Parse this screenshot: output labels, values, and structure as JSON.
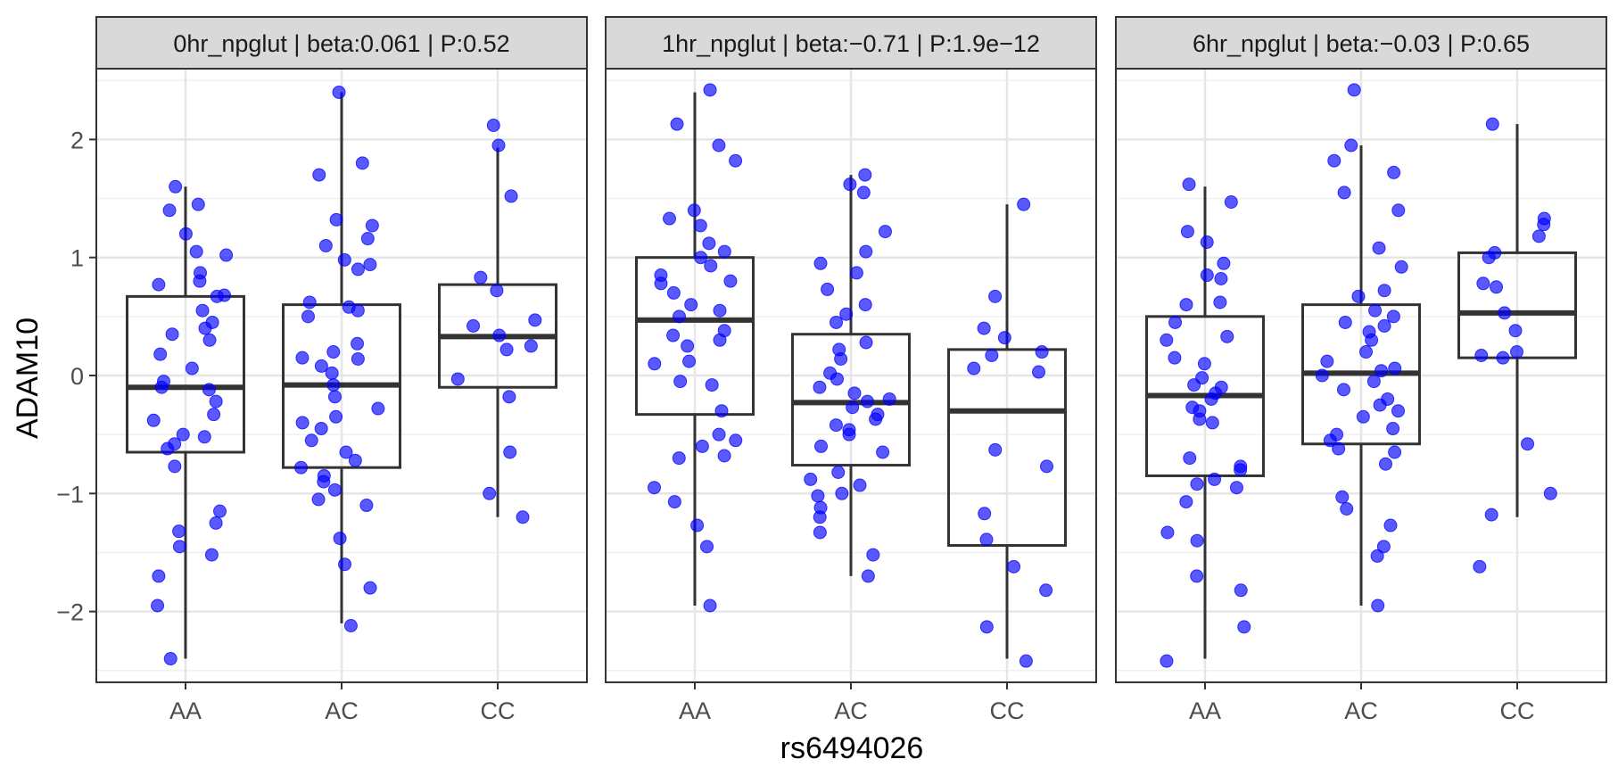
{
  "chart_data": {
    "type": "box",
    "xlabel": "rs6494026",
    "ylabel": "ADAM10",
    "ylim": [
      -2.6,
      2.6
    ],
    "y_ticks": [
      -2,
      -1,
      0,
      1,
      2
    ],
    "y_tick_labels": [
      "−2",
      "−1",
      "0",
      "1",
      "2"
    ],
    "categories": [
      "AA",
      "AC",
      "CC"
    ],
    "grid": true,
    "point_color": "#0000ff",
    "panel_strip_color": "#d9d9d9",
    "panels": [
      {
        "title": "0hr_npglut | beta:0.061 | P:0.52",
        "boxes": [
          {
            "category": "AA",
            "whisker_low": -2.4,
            "q1": -0.65,
            "median": -0.1,
            "q3": 0.67,
            "whisker_high": 1.6
          },
          {
            "category": "AC",
            "whisker_low": -2.1,
            "q1": -0.78,
            "median": -0.08,
            "q3": 0.6,
            "whisker_high": 2.4
          },
          {
            "category": "CC",
            "whisker_low": -1.2,
            "q1": -0.1,
            "median": 0.33,
            "q3": 0.77,
            "whisker_high": 1.93
          }
        ],
        "points": [
          {
            "category": "AA",
            "values": [
              1.45,
              1.4,
              1.05,
              1.02,
              0.87,
              0.8,
              0.77,
              0.67,
              0.55,
              0.45,
              0.4,
              0.35,
              0.3,
              0.18,
              0.06,
              -0.05,
              -0.1,
              -0.12,
              -0.22,
              -0.33,
              -0.38,
              -0.5,
              -0.52,
              -0.58,
              -0.62,
              -0.77,
              -1.15,
              -1.25,
              -1.32,
              -1.45,
              -1.52,
              -1.7,
              -1.95,
              -2.4,
              1.6,
              1.2,
              0.68
            ]
          },
          {
            "category": "AC",
            "values": [
              2.4,
              1.8,
              1.7,
              1.32,
              1.27,
              1.16,
              1.1,
              0.98,
              0.94,
              0.9,
              0.62,
              0.58,
              0.5,
              0.27,
              0.2,
              0.14,
              0.08,
              0.02,
              -0.08,
              -0.18,
              -0.28,
              -0.35,
              -0.4,
              -0.45,
              -0.55,
              -0.72,
              -0.78,
              -0.85,
              -0.9,
              -0.97,
              -1.05,
              -1.1,
              -1.38,
              -1.6,
              -1.8,
              -2.12,
              0.55,
              0.15,
              -0.65
            ]
          },
          {
            "category": "CC",
            "values": [
              2.12,
              1.95,
              1.52,
              0.83,
              0.72,
              0.47,
              0.42,
              0.34,
              0.25,
              0.22,
              -0.03,
              -0.18,
              -0.65,
              -1.0,
              -1.2
            ]
          }
        ]
      },
      {
        "title": "1hr_npglut | beta:−0.71 | P:1.9e−12",
        "boxes": [
          {
            "category": "AA",
            "whisker_low": -1.95,
            "q1": -0.33,
            "median": 0.47,
            "q3": 1.0,
            "whisker_high": 2.4
          },
          {
            "category": "AC",
            "whisker_low": -1.7,
            "q1": -0.76,
            "median": -0.23,
            "q3": 0.35,
            "whisker_high": 1.7
          },
          {
            "category": "CC",
            "whisker_low": -2.4,
            "q1": -1.44,
            "median": -0.3,
            "q3": 0.22,
            "whisker_high": 1.45
          }
        ],
        "points": [
          {
            "category": "AA",
            "values": [
              2.42,
              2.13,
              1.95,
              1.82,
              1.4,
              1.33,
              1.27,
              1.12,
              1.05,
              1.0,
              0.93,
              0.85,
              0.8,
              0.78,
              0.7,
              0.6,
              0.55,
              0.5,
              0.38,
              0.34,
              0.3,
              0.25,
              0.12,
              0.1,
              -0.05,
              -0.08,
              -0.3,
              -0.5,
              -0.55,
              -0.6,
              -0.68,
              -0.7,
              -0.95,
              -1.07,
              -1.27,
              -1.45,
              -1.95
            ]
          },
          {
            "category": "AC",
            "values": [
              1.7,
              1.62,
              1.55,
              1.22,
              1.05,
              0.95,
              0.87,
              0.73,
              0.6,
              0.52,
              0.45,
              0.28,
              0.22,
              0.14,
              0.02,
              -0.03,
              -0.1,
              -0.15,
              -0.2,
              -0.22,
              -0.27,
              -0.33,
              -0.37,
              -0.42,
              -0.46,
              -0.5,
              -0.6,
              -0.65,
              -0.82,
              -0.88,
              -0.93,
              -1.0,
              -1.02,
              -1.12,
              -1.2,
              -1.33,
              -1.52,
              -1.7
            ]
          },
          {
            "category": "CC",
            "values": [
              1.45,
              0.67,
              0.4,
              0.32,
              0.2,
              0.17,
              0.06,
              0.03,
              -0.63,
              -0.77,
              -1.17,
              -1.39,
              -1.62,
              -1.82,
              -2.13,
              -2.42
            ]
          }
        ]
      },
      {
        "title": "6hr_npglut | beta:−0.03 | P:0.65",
        "boxes": [
          {
            "category": "AA",
            "whisker_low": -2.4,
            "q1": -0.85,
            "median": -0.17,
            "q3": 0.5,
            "whisker_high": 1.6
          },
          {
            "category": "AC",
            "whisker_low": -1.95,
            "q1": -0.58,
            "median": 0.02,
            "q3": 0.6,
            "whisker_high": 1.95
          },
          {
            "category": "CC",
            "whisker_low": -1.2,
            "q1": 0.15,
            "median": 0.53,
            "q3": 1.04,
            "whisker_high": 2.13
          }
        ],
        "points": [
          {
            "category": "AA",
            "values": [
              1.62,
              1.47,
              1.22,
              1.13,
              0.95,
              0.85,
              0.82,
              0.62,
              0.6,
              0.45,
              0.33,
              0.3,
              0.15,
              0.1,
              -0.02,
              -0.08,
              -0.1,
              -0.15,
              -0.2,
              -0.27,
              -0.3,
              -0.37,
              -0.4,
              -0.7,
              -0.77,
              -0.8,
              -0.88,
              -0.92,
              -0.95,
              -1.07,
              -1.33,
              -1.4,
              -1.7,
              -1.82,
              -2.13,
              -2.42
            ]
          },
          {
            "category": "AC",
            "values": [
              2.42,
              1.95,
              1.82,
              1.72,
              1.55,
              1.4,
              1.08,
              0.92,
              0.72,
              0.67,
              0.55,
              0.5,
              0.45,
              0.42,
              0.37,
              0.3,
              0.2,
              0.12,
              0.06,
              0.04,
              0.0,
              -0.05,
              -0.12,
              -0.2,
              -0.25,
              -0.3,
              -0.35,
              -0.45,
              -0.5,
              -0.55,
              -0.62,
              -0.65,
              -0.75,
              -1.03,
              -1.13,
              -1.27,
              -1.45,
              -1.53,
              -1.95
            ]
          },
          {
            "category": "CC",
            "values": [
              2.13,
              1.33,
              1.28,
              1.18,
              1.04,
              1.0,
              0.78,
              0.75,
              0.53,
              0.38,
              0.2,
              0.17,
              0.15,
              -0.58,
              -1.0,
              -1.18,
              -1.62
            ]
          }
        ]
      }
    ]
  }
}
